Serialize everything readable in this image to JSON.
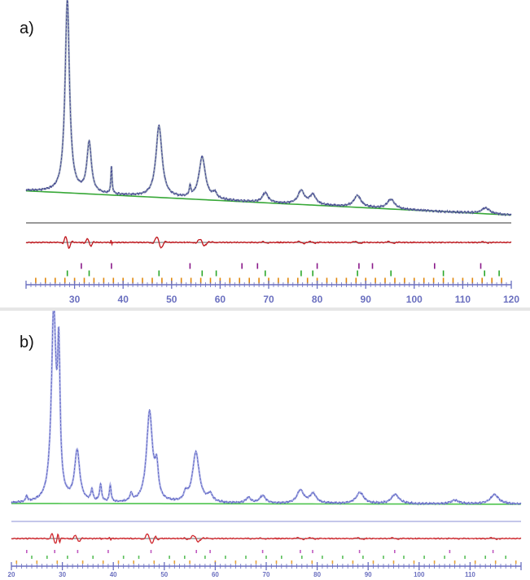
{
  "panels": [
    {
      "label": "a)",
      "colors": {
        "observed": "#3d3f8f",
        "calculated": "#7f8fa6",
        "background": "#37a837",
        "difference": "#c0161c",
        "axis": "#6a6fbf",
        "phase1": "#8a1a8a",
        "phase2": "#2aa72a",
        "phase3": "#e0870c"
      }
    },
    {
      "label": "b)",
      "colors": {
        "observed": "#5b61c2",
        "calculated": "#9aa0e0",
        "background": "#4ec44e",
        "difference": "#d0282e",
        "axis": "#6a6fbf",
        "phase1": "#c05ac0",
        "phase2": "#5bbf5b",
        "phase3": "#e6a640"
      }
    }
  ],
  "chart_data": [
    {
      "type": "line",
      "title": "",
      "xlabel": "",
      "ylabel": "",
      "xlim": [
        20,
        120
      ],
      "xticks": [
        30,
        40,
        50,
        60,
        70,
        80,
        90,
        100,
        110,
        120
      ],
      "grid": false,
      "series": [
        {
          "role": "observed",
          "peaks": [
            {
              "x": 28.5,
              "y": 100,
              "w": 0.55
            },
            {
              "x": 33.0,
              "y": 26,
              "w": 0.55
            },
            {
              "x": 37.6,
              "y": 14,
              "w": 0.15
            },
            {
              "x": 47.4,
              "y": 37,
              "w": 0.75
            },
            {
              "x": 53.8,
              "y": 5,
              "w": 0.2
            },
            {
              "x": 56.3,
              "y": 22,
              "w": 0.8
            },
            {
              "x": 58.9,
              "y": 3,
              "w": 0.5
            },
            {
              "x": 69.3,
              "y": 5,
              "w": 0.7
            },
            {
              "x": 76.7,
              "y": 7,
              "w": 0.8
            },
            {
              "x": 79.1,
              "y": 5,
              "w": 0.8
            },
            {
              "x": 88.3,
              "y": 6,
              "w": 0.9
            },
            {
              "x": 95.2,
              "y": 5,
              "w": 0.9
            },
            {
              "x": 114.7,
              "y": 3,
              "w": 1.0
            }
          ]
        }
      ],
      "background_line": {
        "start": 4,
        "end": -1
      },
      "reflection_ticks": {
        "phase1": [
          31.4,
          37.6,
          53.8,
          64.5,
          67.7,
          80.0,
          88.6,
          91.4,
          104.2,
          113.7
        ],
        "phase2": [
          28.5,
          33.0,
          47.4,
          56.3,
          59.2,
          69.3,
          76.7,
          79.1,
          88.3,
          95.2,
          106.0,
          114.5,
          117.5
        ],
        "phase3": [
          22,
          24,
          26,
          28,
          30,
          32,
          34,
          36,
          38,
          40,
          42,
          44,
          46,
          48,
          50,
          52,
          54,
          56,
          58,
          60,
          62,
          64,
          66,
          68,
          70,
          72,
          74,
          76,
          78,
          80,
          82,
          84,
          86,
          88,
          90,
          92,
          94,
          96,
          98,
          100,
          102,
          104,
          106,
          108,
          110,
          112,
          114,
          116,
          118
        ]
      }
    },
    {
      "type": "line",
      "title": "",
      "xlabel": "",
      "ylabel": "",
      "xlim": [
        20,
        120
      ],
      "xticks": [
        20,
        30,
        40,
        50,
        60,
        70,
        80,
        90,
        100,
        110
      ],
      "grid": false,
      "series": [
        {
          "role": "observed",
          "peaks": [
            {
              "x": 23.0,
              "y": 3,
              "w": 0.2
            },
            {
              "x": 28.3,
              "y": 100,
              "w": 0.55
            },
            {
              "x": 29.3,
              "y": 70,
              "w": 0.3
            },
            {
              "x": 32.9,
              "y": 27,
              "w": 0.6
            },
            {
              "x": 35.8,
              "y": 6,
              "w": 0.25
            },
            {
              "x": 37.5,
              "y": 9,
              "w": 0.25
            },
            {
              "x": 39.4,
              "y": 9,
              "w": 0.2
            },
            {
              "x": 43.5,
              "y": 4,
              "w": 0.3
            },
            {
              "x": 47.1,
              "y": 48,
              "w": 0.7
            },
            {
              "x": 48.5,
              "y": 16,
              "w": 0.4
            },
            {
              "x": 54.2,
              "y": 4,
              "w": 0.4
            },
            {
              "x": 56.2,
              "y": 27,
              "w": 0.8
            },
            {
              "x": 59.0,
              "y": 4,
              "w": 0.6
            },
            {
              "x": 66.5,
              "y": 3,
              "w": 0.6
            },
            {
              "x": 69.3,
              "y": 4,
              "w": 0.7
            },
            {
              "x": 76.7,
              "y": 7,
              "w": 0.8
            },
            {
              "x": 79.2,
              "y": 5,
              "w": 0.8
            },
            {
              "x": 88.4,
              "y": 6,
              "w": 0.9
            },
            {
              "x": 95.3,
              "y": 5,
              "w": 0.9
            },
            {
              "x": 107.0,
              "y": 2,
              "w": 1.0
            },
            {
              "x": 114.8,
              "y": 5,
              "w": 1.0
            }
          ]
        }
      ],
      "background_line": {
        "start": 0.5,
        "end": 0.5
      },
      "reflection_ticks": {
        "phase1": [
          23,
          28.5,
          33,
          39,
          47.4,
          56.3,
          59,
          69.3,
          76.7,
          79.1,
          88.3,
          95.2,
          106,
          114.5
        ],
        "phase2": [
          24,
          27,
          31,
          36,
          42,
          45,
          51,
          54,
          58,
          62,
          66,
          70,
          73,
          77,
          81,
          85,
          89,
          93,
          97,
          101,
          105,
          109,
          113,
          117
        ],
        "phase3": [
          21,
          25,
          29,
          34,
          38,
          41,
          44,
          48,
          52,
          55,
          60,
          64,
          68,
          72,
          75,
          79,
          83,
          87,
          91,
          95,
          99,
          103,
          107,
          111,
          115,
          119
        ]
      }
    }
  ]
}
